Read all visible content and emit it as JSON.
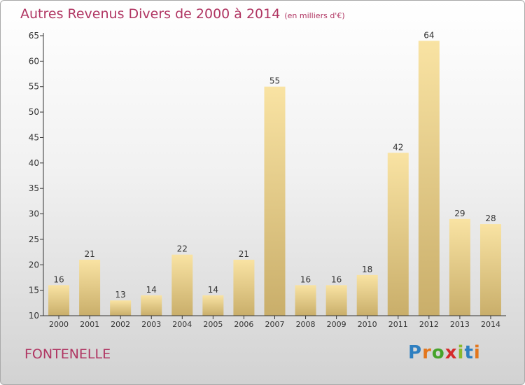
{
  "title": {
    "main": "Autres Revenus Divers de 2000 à 2014",
    "unit": "(en milliers d'€)"
  },
  "town": "FONTENELLE",
  "logo": {
    "letters": [
      "P",
      "r",
      "o",
      "x",
      "i",
      "t",
      "i"
    ],
    "colors": [
      "#2e7fc0",
      "#e3761c",
      "#46a32b",
      "#d52b2b",
      "#8bb92c",
      "#2e7fc0",
      "#e3761c"
    ]
  },
  "colors": {
    "title": "#b03562",
    "bar_light": "#f9e3a3",
    "bar_dark": "#c9ae6a",
    "axis": "#333333"
  },
  "chart_data": {
    "type": "bar",
    "title": "Autres Revenus Divers de 2000 à 2014",
    "xlabel": "",
    "ylabel": "",
    "ylim": [
      10,
      65
    ],
    "yticks": [
      10,
      15,
      20,
      25,
      30,
      35,
      40,
      45,
      50,
      55,
      60,
      65
    ],
    "grid": false,
    "categories": [
      "2000",
      "2001",
      "2002",
      "2003",
      "2004",
      "2005",
      "2006",
      "2007",
      "2008",
      "2009",
      "2010",
      "2011",
      "2012",
      "2013",
      "2014"
    ],
    "values": [
      16,
      21,
      13,
      14,
      22,
      14,
      21,
      55,
      16,
      16,
      18,
      42,
      64,
      29,
      28
    ]
  }
}
